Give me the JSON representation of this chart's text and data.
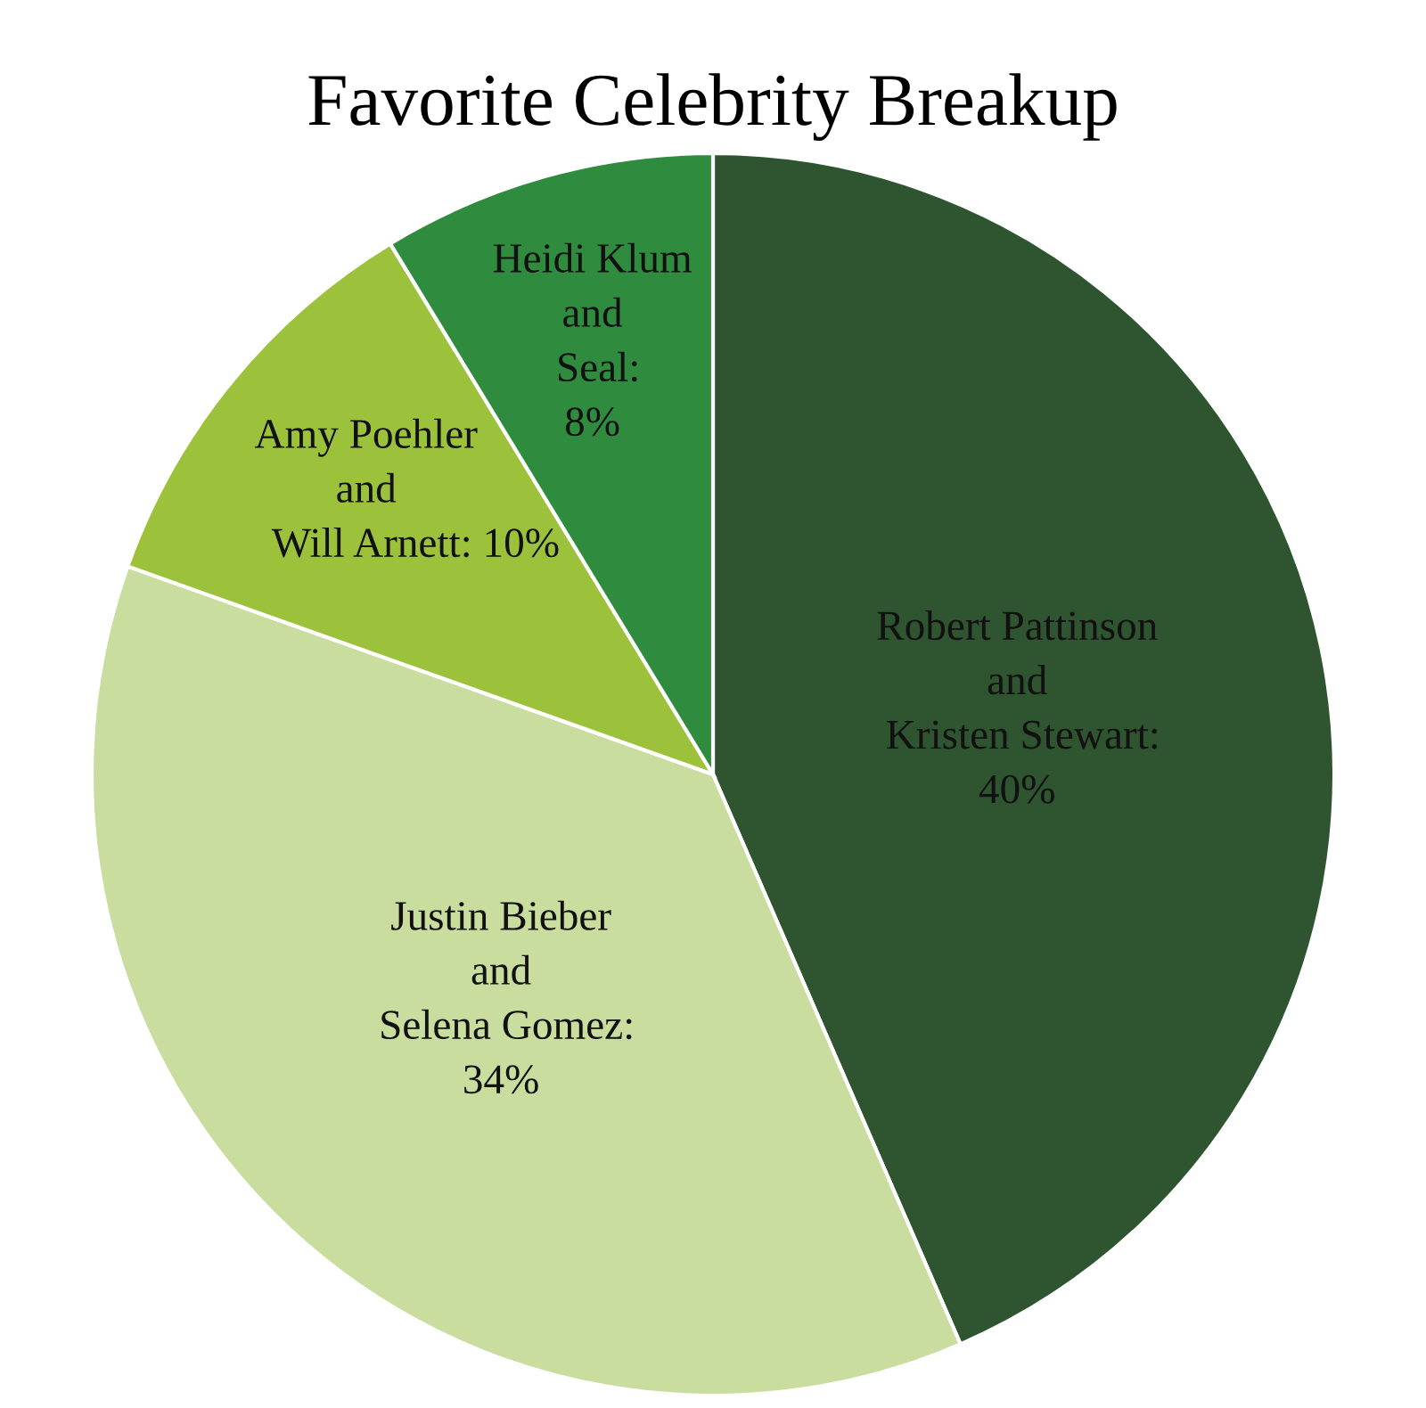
{
  "chart_data": {
    "type": "pie",
    "title": "Favorite Celebrity Breakup",
    "categories": [
      "Robert Pattinson\nand\nKristen Stewart",
      "Justin Bieber\nand\nSelena Gomez",
      "Amy Poehler\nand\nWill Arnett",
      "Heidi Klum\nand\nSeal"
    ],
    "values": [
      40,
      34,
      10,
      8
    ],
    "value_labels": [
      ":\n40%",
      ":\n34%",
      ": 10%",
      ":\n8%"
    ],
    "colors": [
      "#2f5430",
      "#c9dd9f",
      "#9cc23b",
      "#2f8c3f"
    ],
    "legend": false
  }
}
